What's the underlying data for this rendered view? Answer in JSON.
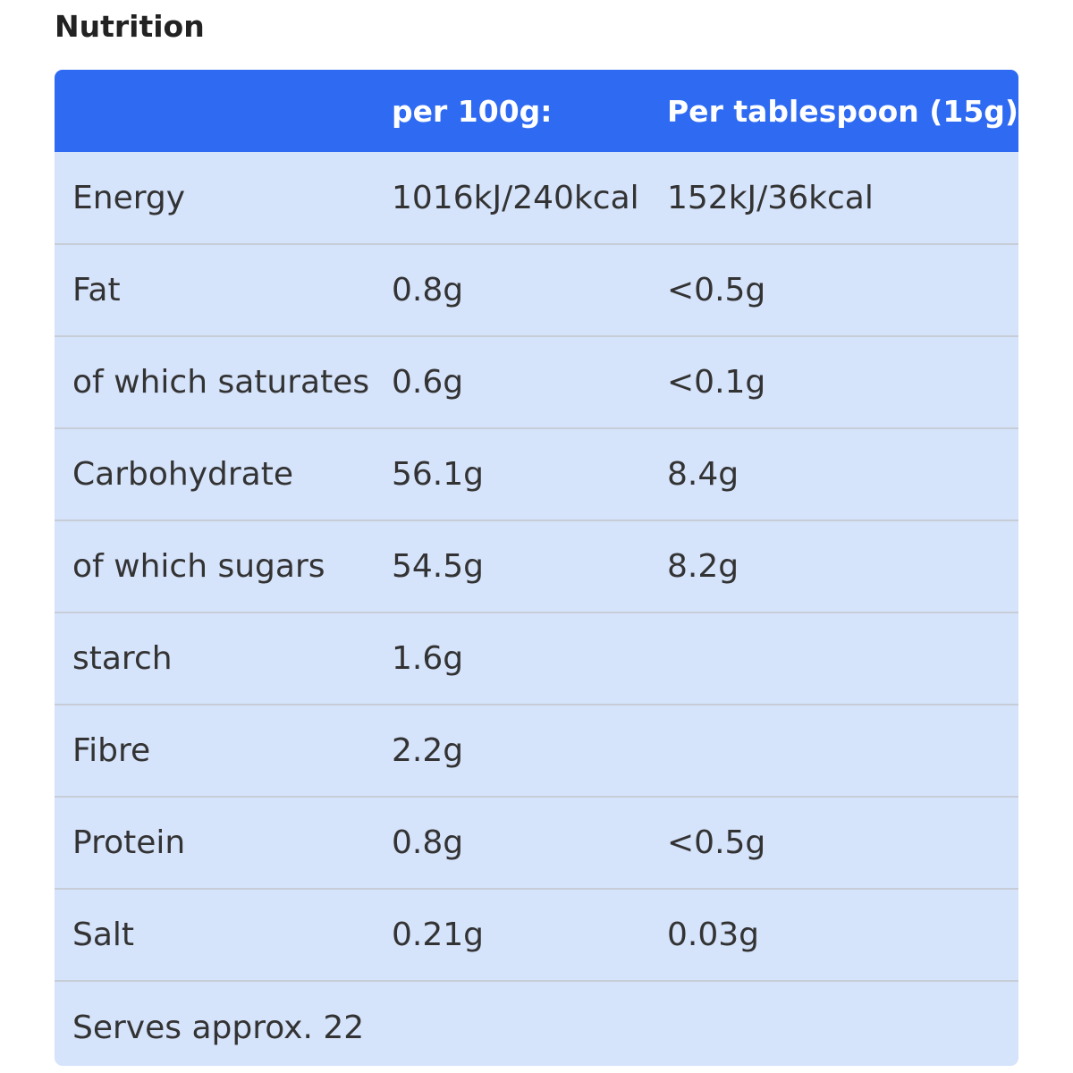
{
  "title": "Nutrition",
  "table": {
    "headers": [
      "",
      "per 100g:",
      "Per tablespoon (15g)"
    ],
    "rows": [
      [
        "Energy",
        "1016kJ/240kcal",
        "152kJ/36kcal"
      ],
      [
        "Fat",
        "0.8g",
        "<0.5g"
      ],
      [
        "of which saturates",
        "0.6g",
        "<0.1g"
      ],
      [
        "Carbohydrate",
        "56.1g",
        "8.4g"
      ],
      [
        "of which sugars",
        "54.5g",
        "8.2g"
      ],
      [
        "starch",
        "1.6g",
        ""
      ],
      [
        "Fibre",
        "2.2g",
        ""
      ],
      [
        "Protein",
        "0.8g",
        "<0.5g"
      ],
      [
        "Salt",
        "0.21g",
        "0.03g"
      ],
      [
        "Serves approx. 22",
        "",
        ""
      ]
    ]
  },
  "colors": {
    "header_bg": "#2e6af2",
    "row_bg": "#d5e3fb",
    "row_border": "#c7cdd6",
    "header_text": "#ffffff",
    "body_text": "#333333"
  }
}
